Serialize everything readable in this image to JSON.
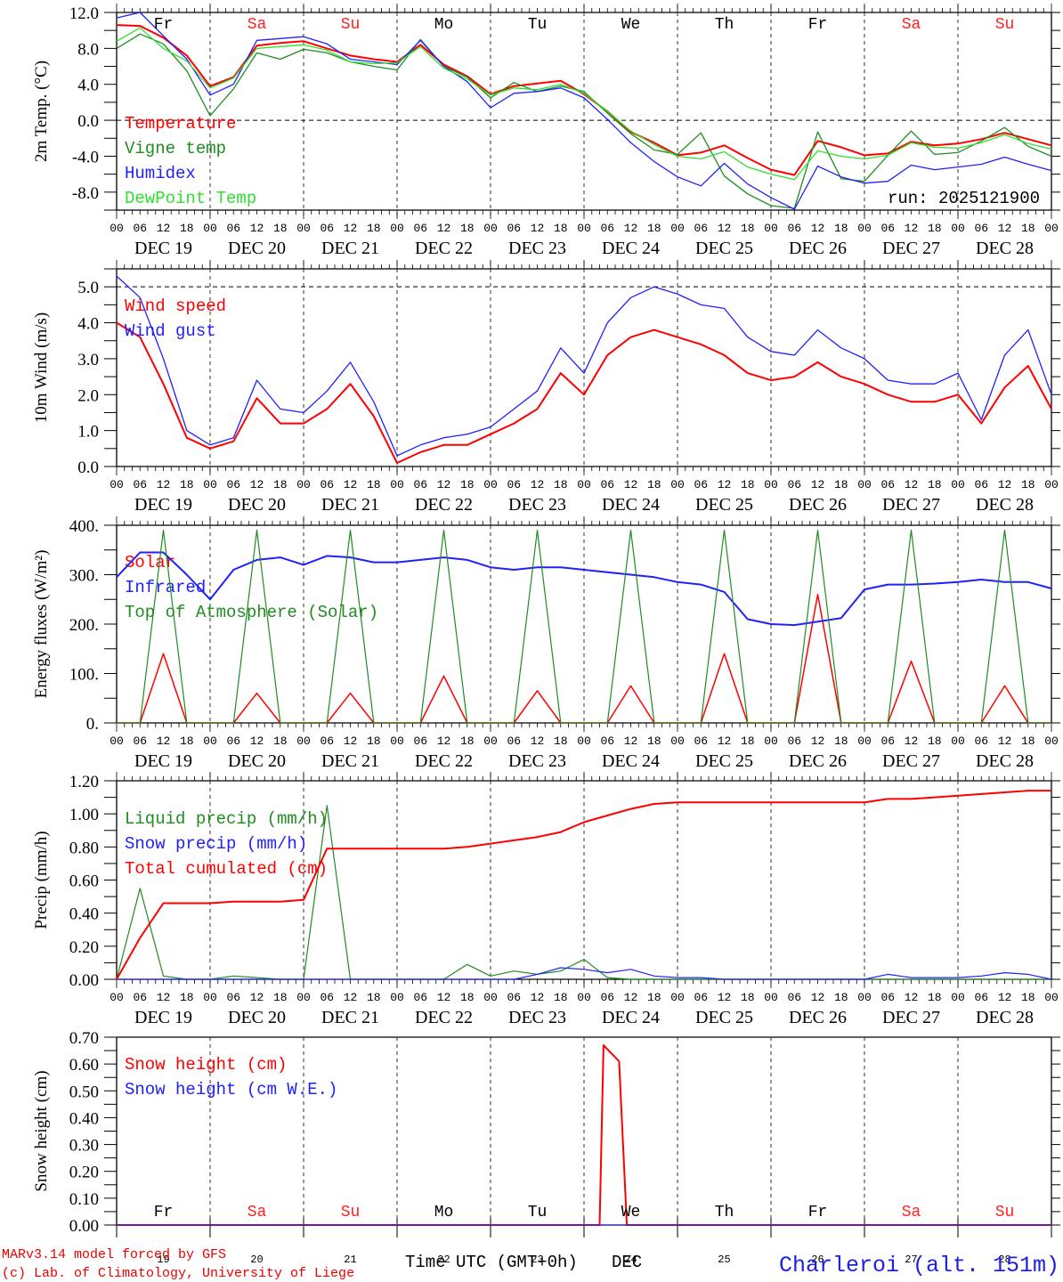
{
  "run_label": "run: 2025121900",
  "station": "Charleroi (alt. 151m)",
  "footer": {
    "model": "MARv3.14 model forced by GFS",
    "credit": "(c) Lab. of Climatology, University of Liege",
    "xaxis_title": "Time UTC (GMT+0h)",
    "month": "DEC"
  },
  "weekdays": [
    {
      "label": "Fr",
      "color": "#000000"
    },
    {
      "label": "Sa",
      "color": "#ff2020"
    },
    {
      "label": "Su",
      "color": "#ff2020"
    },
    {
      "label": "Mo",
      "color": "#000000"
    },
    {
      "label": "Tu",
      "color": "#000000"
    },
    {
      "label": "We",
      "color": "#000000"
    },
    {
      "label": "Th",
      "color": "#000000"
    },
    {
      "label": "Fr",
      "color": "#000000"
    },
    {
      "label": "Sa",
      "color": "#ff2020"
    },
    {
      "label": "Su",
      "color": "#ff2020"
    }
  ],
  "day_labels": [
    "DEC 19",
    "DEC 20",
    "DEC 21",
    "DEC 22",
    "DEC 23",
    "DEC 24",
    "DEC 25",
    "DEC 26",
    "DEC 27",
    "DEC 28"
  ],
  "day_numbers": [
    "19",
    "20",
    "21",
    "22",
    "23",
    "24",
    "25",
    "26",
    "27",
    "28"
  ],
  "hour_ticks": [
    "00",
    "06",
    "12",
    "18"
  ],
  "hour_tick_end": "00",
  "chart_data": [
    {
      "type": "line",
      "title": "",
      "ylabel": "2m Temp. (°C)",
      "ylim": [
        -10,
        12
      ],
      "yticks": [
        "12.0",
        "8.0",
        "4.0",
        "0.0",
        "-4.0",
        "-8.0"
      ],
      "ytick_values": [
        12,
        8,
        4,
        0,
        -4,
        -8
      ],
      "reference_line": 0,
      "x_unit": "hours since 2025-12-19 00 UTC, every 6h",
      "series": [
        {
          "name": "Temperature",
          "color": "#ff0000",
          "width": 2,
          "values": [
            10.6,
            10.5,
            9.2,
            7.2,
            3.8,
            4.8,
            8.3,
            8.6,
            8.8,
            8.0,
            7.2,
            6.8,
            6.5,
            8.4,
            6.2,
            4.9,
            2.9,
            3.8,
            4.1,
            4.4,
            2.9,
            1.0,
            -1.3,
            -2.5,
            -3.9,
            -3.6,
            -2.8,
            -4.2,
            -5.5,
            -6.1,
            -2.3,
            -3.0,
            -3.9,
            -3.7,
            -2.4,
            -2.8,
            -2.6,
            -2.1,
            -1.4,
            -2.1,
            -2.8
          ]
        },
        {
          "name": "Vigne temp",
          "color": "#208c20",
          "width": 1.3,
          "values": [
            8.0,
            9.6,
            8.5,
            5.5,
            0.5,
            3.5,
            7.5,
            6.8,
            7.9,
            7.5,
            6.5,
            6.0,
            5.6,
            9.0,
            6.0,
            4.8,
            2.5,
            4.2,
            3.2,
            3.8,
            3.2,
            0.8,
            -1.5,
            -3.3,
            -3.8,
            -1.4,
            -6.2,
            -8.2,
            -9.5,
            -9.8,
            -1.3,
            -6.5,
            -6.8,
            -3.9,
            -1.2,
            -3.8,
            -3.6,
            -2.3,
            -0.8,
            -2.9,
            -4.0
          ]
        },
        {
          "name": "Humidex",
          "color": "#2020ff",
          "width": 1.3,
          "values": [
            11.4,
            12.0,
            9.4,
            6.8,
            2.8,
            4.0,
            8.9,
            9.1,
            9.3,
            8.5,
            6.8,
            6.5,
            6.2,
            8.9,
            6.0,
            4.3,
            1.4,
            3.0,
            3.2,
            3.6,
            2.5,
            0.1,
            -2.5,
            -4.6,
            -6.3,
            -7.3,
            -4.8,
            -7.1,
            -8.6,
            -9.9,
            -5.1,
            -6.3,
            -7.0,
            -6.8,
            -5.0,
            -5.5,
            -5.2,
            -4.9,
            -4.1,
            -4.9,
            -5.6
          ]
        },
        {
          "name": "DewPoint Temp",
          "color": "#30e030",
          "width": 1.3,
          "values": [
            8.8,
            10.3,
            8.0,
            6.6,
            3.6,
            4.7,
            8.0,
            8.2,
            8.4,
            7.8,
            6.5,
            6.3,
            6.4,
            8.2,
            5.8,
            4.6,
            2.8,
            3.6,
            3.4,
            4.0,
            3.0,
            1.0,
            -1.2,
            -2.7,
            -4.0,
            -4.3,
            -3.5,
            -5.2,
            -6.0,
            -6.6,
            -3.4,
            -4.0,
            -4.3,
            -3.9,
            -2.5,
            -3.0,
            -3.1,
            -2.5,
            -1.6,
            -2.6,
            -3.2
          ]
        }
      ]
    },
    {
      "type": "line",
      "ylabel": "10m Wind (m/s)",
      "ylim": [
        0,
        5.5
      ],
      "yticks": [
        "5.0",
        "4.0",
        "3.0",
        "2.0",
        "1.0",
        "0.0"
      ],
      "ytick_values": [
        5,
        4,
        3,
        2,
        1,
        0
      ],
      "reference_line": 5,
      "series": [
        {
          "name": "Wind speed",
          "color": "#ff0000",
          "width": 2,
          "values": [
            4.0,
            3.6,
            2.3,
            0.8,
            0.5,
            0.7,
            1.9,
            1.2,
            1.2,
            1.6,
            2.3,
            1.4,
            0.1,
            0.4,
            0.6,
            0.6,
            0.9,
            1.2,
            1.6,
            2.6,
            2.0,
            3.1,
            3.6,
            3.8,
            3.6,
            3.4,
            3.1,
            2.6,
            2.4,
            2.5,
            2.9,
            2.5,
            2.3,
            2.0,
            1.8,
            1.8,
            2.0,
            1.2,
            2.2,
            2.8,
            1.6
          ]
        },
        {
          "name": "Wind gust",
          "color": "#2020ff",
          "width": 1.3,
          "values": [
            5.3,
            4.7,
            3.0,
            1.0,
            0.6,
            0.8,
            2.4,
            1.6,
            1.5,
            2.1,
            2.9,
            1.8,
            0.3,
            0.6,
            0.8,
            0.9,
            1.1,
            1.6,
            2.1,
            3.3,
            2.6,
            4.0,
            4.7,
            5.0,
            4.8,
            4.5,
            4.4,
            3.6,
            3.2,
            3.1,
            3.8,
            3.3,
            3.0,
            2.4,
            2.3,
            2.3,
            2.6,
            1.3,
            3.1,
            3.8,
            2.0
          ]
        }
      ]
    },
    {
      "type": "line",
      "ylabel": "Energy fluxes (W/m²)",
      "ylim": [
        0,
        400
      ],
      "yticks": [
        "400.",
        "300.",
        "200.",
        "100.",
        "0."
      ],
      "ytick_values": [
        400,
        300,
        200,
        100,
        0
      ],
      "series": [
        {
          "name": "Solar",
          "color": "#ff0000",
          "width": 1.5,
          "values": [
            0,
            0,
            140,
            0,
            0,
            0,
            60,
            0,
            0,
            0,
            60,
            0,
            0,
            0,
            95,
            0,
            0,
            0,
            65,
            0,
            0,
            0,
            75,
            0,
            0,
            0,
            140,
            0,
            0,
            0,
            260,
            0,
            0,
            0,
            125,
            0,
            0,
            0,
            75,
            0,
            0
          ]
        },
        {
          "name": "Infrared",
          "color": "#2020ff",
          "width": 2,
          "values": [
            295,
            345,
            345,
            300,
            250,
            310,
            330,
            335,
            320,
            338,
            335,
            325,
            325,
            330,
            335,
            330,
            315,
            310,
            315,
            315,
            310,
            305,
            300,
            295,
            285,
            280,
            265,
            210,
            200,
            198,
            205,
            212,
            270,
            280,
            280,
            282,
            285,
            290,
            285,
            285,
            272
          ]
        },
        {
          "name": "Top of Atmosphere (Solar)",
          "color": "#208c20",
          "width": 1.2,
          "values": [
            0,
            0,
            390,
            0,
            0,
            0,
            390,
            0,
            0,
            0,
            390,
            0,
            0,
            0,
            390,
            0,
            0,
            0,
            390,
            0,
            0,
            0,
            390,
            0,
            0,
            0,
            390,
            0,
            0,
            0,
            390,
            0,
            0,
            0,
            390,
            0,
            0,
            0,
            390,
            0,
            0
          ]
        }
      ]
    },
    {
      "type": "line",
      "ylabel": "Precip (mm/h)",
      "ylim": [
        0,
        1.2
      ],
      "yticks": [
        "1.20",
        "1.00",
        "0.80",
        "0.60",
        "0.40",
        "0.20",
        "0.00"
      ],
      "ytick_values": [
        1.2,
        1.0,
        0.8,
        0.6,
        0.4,
        0.2,
        0.0
      ],
      "series": [
        {
          "name": "Liquid precip (mm/h)",
          "color": "#208c20",
          "width": 1.2,
          "values": [
            0,
            0.55,
            0.02,
            0,
            0,
            0.02,
            0.01,
            0,
            0,
            1.05,
            0,
            0,
            0,
            0,
            0,
            0.09,
            0.02,
            0.05,
            0.03,
            0.05,
            0.12,
            0.01,
            0,
            0,
            0,
            0,
            0,
            0,
            0,
            0,
            0,
            0,
            0,
            0,
            0,
            0,
            0,
            0,
            0,
            0,
            0
          ]
        },
        {
          "name": "Snow precip (mm/h)",
          "color": "#2020ff",
          "width": 1.2,
          "values": [
            0,
            0,
            0,
            0,
            0,
            0,
            0,
            0,
            0,
            0,
            0,
            0,
            0,
            0,
            0,
            0,
            0,
            0,
            0.03,
            0.07,
            0.06,
            0.04,
            0.06,
            0.02,
            0.01,
            0.01,
            0,
            0,
            0,
            0,
            0,
            0,
            0,
            0.03,
            0.01,
            0.01,
            0.01,
            0.02,
            0.04,
            0.03,
            0
          ]
        },
        {
          "name": "Total cumulated (cm)",
          "color": "#ff0000",
          "width": 2,
          "values": [
            0,
            0.25,
            0.46,
            0.46,
            0.46,
            0.47,
            0.47,
            0.47,
            0.48,
            0.79,
            0.79,
            0.79,
            0.79,
            0.79,
            0.79,
            0.8,
            0.82,
            0.84,
            0.86,
            0.89,
            0.95,
            0.99,
            1.03,
            1.06,
            1.07,
            1.07,
            1.07,
            1.07,
            1.07,
            1.07,
            1.07,
            1.07,
            1.07,
            1.09,
            1.09,
            1.1,
            1.11,
            1.12,
            1.13,
            1.14,
            1.14
          ]
        }
      ]
    },
    {
      "type": "line",
      "ylabel": "Snow height (cm)",
      "ylim": [
        0,
        0.7
      ],
      "yticks": [
        "0.70",
        "0.60",
        "0.50",
        "0.40",
        "0.30",
        "0.20",
        "0.10",
        "0.00"
      ],
      "ytick_values": [
        0.7,
        0.6,
        0.5,
        0.4,
        0.3,
        0.2,
        0.1,
        0.0
      ],
      "series": [
        {
          "name": "Snow height (cm)",
          "color": "#ff0000",
          "width": 2,
          "values_hourly_points": [
            [
              0,
              0
            ],
            [
              124,
              0
            ],
            [
              125,
              0.67
            ],
            [
              127,
              0.64
            ],
            [
              129,
              0.61
            ],
            [
              131,
              0
            ],
            [
              240,
              0
            ]
          ]
        },
        {
          "name": "Snow height (cm W.E.)",
          "color": "#2020ff",
          "width": 1.2,
          "values_hourly_points": [
            [
              0,
              0
            ],
            [
              240,
              0
            ]
          ]
        }
      ]
    }
  ]
}
